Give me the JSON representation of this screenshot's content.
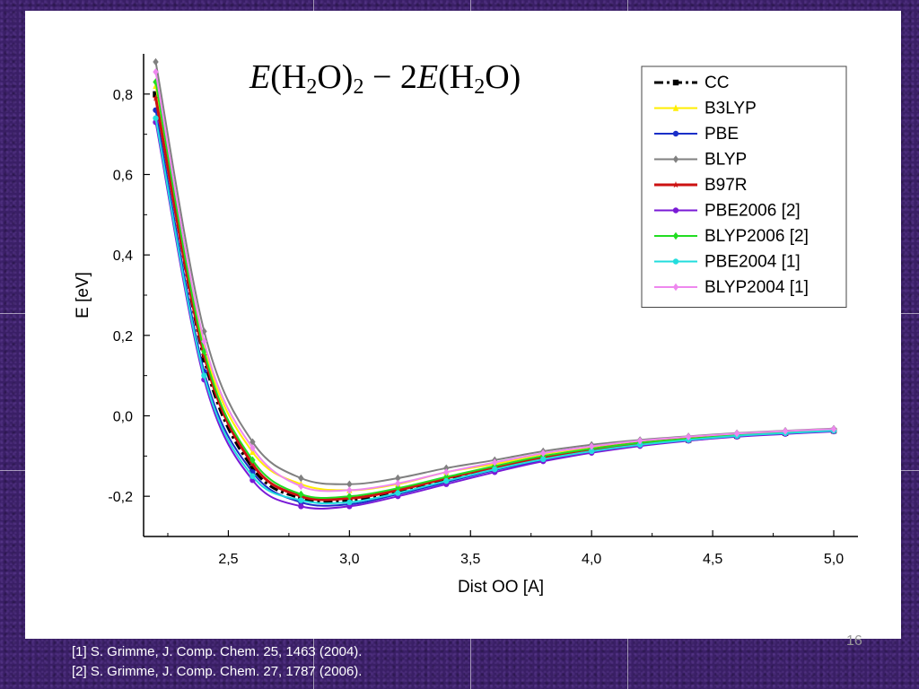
{
  "slide": {
    "page_number": "16",
    "references": [
      "[1] S. Grimme, J. Comp. Chem. 25, 1463 (2004).",
      "[2] S. Grimme, J. Comp. Chem. 27, 1787 (2006)."
    ]
  },
  "formula": {
    "e1": "E",
    "p1": "(H",
    "s1": "2",
    "p2": "O)",
    "s2": "2",
    "minus": " − 2",
    "e2": "E",
    "p3": "(H",
    "s3": "2",
    "p4": "O)"
  },
  "chart_data": {
    "type": "line",
    "title": "",
    "xlabel": "Dist OO [A]",
    "ylabel": "E [eV]",
    "xlim": [
      2.15,
      5.1
    ],
    "ylim": [
      -0.3,
      0.9
    ],
    "x_ticks": [
      2.5,
      3.0,
      3.5,
      4.0,
      4.5,
      5.0
    ],
    "x_tick_labels": [
      "2,5",
      "3,0",
      "3,5",
      "4,0",
      "4,5",
      "5,0"
    ],
    "y_ticks": [
      -0.2,
      0.0,
      0.2,
      0.4,
      0.6,
      0.8
    ],
    "y_tick_labels": [
      "-0,2",
      "0,0",
      "0,2",
      "0,4",
      "0,6",
      "0,8"
    ],
    "legend_position": "top-right",
    "grid": false,
    "x": [
      2.2,
      2.4,
      2.6,
      2.8,
      3.0,
      3.2,
      3.4,
      3.6,
      3.8,
      4.0,
      4.2,
      4.4,
      4.6,
      4.8,
      5.0
    ],
    "series": [
      {
        "name": "CC",
        "color": "#000000",
        "marker": "square",
        "dash": "10,4,3,4",
        "width": 3,
        "values": [
          0.8,
          0.14,
          -0.13,
          -0.205,
          -0.21,
          -0.19,
          -0.16,
          -0.13,
          -0.105,
          -0.085,
          -0.07,
          -0.06,
          -0.05,
          -0.043,
          -0.037
        ]
      },
      {
        "name": "B3LYP",
        "color": "#ffee00",
        "marker": "triangle",
        "dash": "",
        "width": 2,
        "values": [
          0.82,
          0.17,
          -0.09,
          -0.17,
          -0.185,
          -0.17,
          -0.14,
          -0.12,
          -0.095,
          -0.078,
          -0.065,
          -0.055,
          -0.046,
          -0.04,
          -0.035
        ]
      },
      {
        "name": "PBE",
        "color": "#1a2fc8",
        "marker": "circle",
        "dash": "",
        "width": 2,
        "values": [
          0.76,
          0.11,
          -0.14,
          -0.215,
          -0.22,
          -0.195,
          -0.165,
          -0.135,
          -0.11,
          -0.09,
          -0.073,
          -0.061,
          -0.051,
          -0.044,
          -0.038
        ]
      },
      {
        "name": "BLYP",
        "color": "#808080",
        "marker": "diamond",
        "dash": "",
        "width": 2,
        "values": [
          0.88,
          0.21,
          -0.065,
          -0.155,
          -0.17,
          -0.155,
          -0.13,
          -0.11,
          -0.088,
          -0.072,
          -0.06,
          -0.051,
          -0.043,
          -0.037,
          -0.032
        ]
      },
      {
        "name": "B97R",
        "color": "#cc1111",
        "marker": "star",
        "dash": "",
        "width": 3,
        "values": [
          0.79,
          0.15,
          -0.12,
          -0.2,
          -0.205,
          -0.185,
          -0.155,
          -0.128,
          -0.103,
          -0.083,
          -0.068,
          -0.058,
          -0.049,
          -0.042,
          -0.036
        ]
      },
      {
        "name": "PBE2006 [2]",
        "color": "#7a1ad6",
        "marker": "circle",
        "dash": "",
        "width": 2,
        "values": [
          0.73,
          0.09,
          -0.16,
          -0.225,
          -0.225,
          -0.2,
          -0.17,
          -0.14,
          -0.113,
          -0.092,
          -0.075,
          -0.062,
          -0.052,
          -0.045,
          -0.039
        ]
      },
      {
        "name": "BLYP2006 [2]",
        "color": "#22dd22",
        "marker": "diamond",
        "dash": "",
        "width": 2,
        "values": [
          0.83,
          0.16,
          -0.11,
          -0.195,
          -0.2,
          -0.18,
          -0.152,
          -0.125,
          -0.1,
          -0.082,
          -0.067,
          -0.057,
          -0.048,
          -0.041,
          -0.036
        ]
      },
      {
        "name": "PBE2004 [1]",
        "color": "#22dddd",
        "marker": "circle",
        "dash": "",
        "width": 2,
        "values": [
          0.74,
          0.1,
          -0.15,
          -0.21,
          -0.215,
          -0.192,
          -0.162,
          -0.133,
          -0.108,
          -0.088,
          -0.072,
          -0.06,
          -0.05,
          -0.043,
          -0.037
        ]
      },
      {
        "name": "BLYP2004 [1]",
        "color": "#ee88ee",
        "marker": "diamond",
        "dash": "",
        "width": 2,
        "values": [
          0.855,
          0.185,
          -0.08,
          -0.175,
          -0.185,
          -0.168,
          -0.14,
          -0.116,
          -0.093,
          -0.076,
          -0.062,
          -0.052,
          -0.044,
          -0.038,
          -0.033
        ]
      }
    ]
  }
}
